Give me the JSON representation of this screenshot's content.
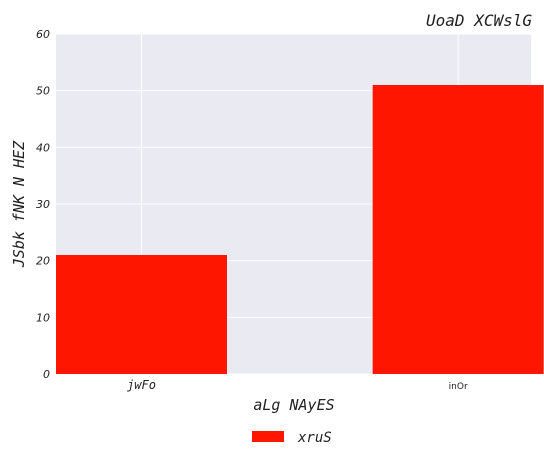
{
  "chart_data": {
    "type": "bar",
    "title": "UoaD XCWslG",
    "xlabel": "aLg  NAyES",
    "ylabel": "JSbk fNK N HEZ",
    "categories": [
      "jwFo",
      "inOr"
    ],
    "series": [
      {
        "name": "xruS",
        "values": [
          21,
          51
        ],
        "color": "#ff1600"
      }
    ],
    "ylim": [
      0,
      60
    ],
    "yticks": [
      0,
      10,
      20,
      30,
      40,
      50,
      60
    ],
    "grid": true,
    "legend": "bottom-center",
    "colors": {
      "plot_background": "#eaeaf2",
      "grid": "#ffffff"
    }
  }
}
